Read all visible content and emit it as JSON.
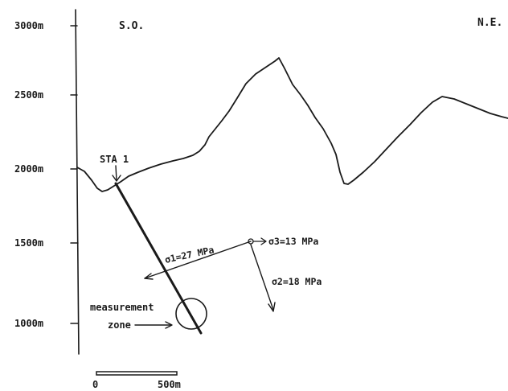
{
  "axis": {
    "ticks": [
      "3000m",
      "2500m",
      "2000m",
      "1500m",
      "1000m"
    ]
  },
  "directions": {
    "left": "S.O.",
    "right": "N.E."
  },
  "station": {
    "label": "STA 1"
  },
  "stresses": {
    "sigma1": "σ1=27 MPa",
    "sigma2": "σ2=18 MPa",
    "sigma3": "σ3=13 MPa"
  },
  "zone": {
    "line1": "measurement",
    "line2": "zone"
  },
  "scale": {
    "start": "0",
    "end": "500m"
  }
}
